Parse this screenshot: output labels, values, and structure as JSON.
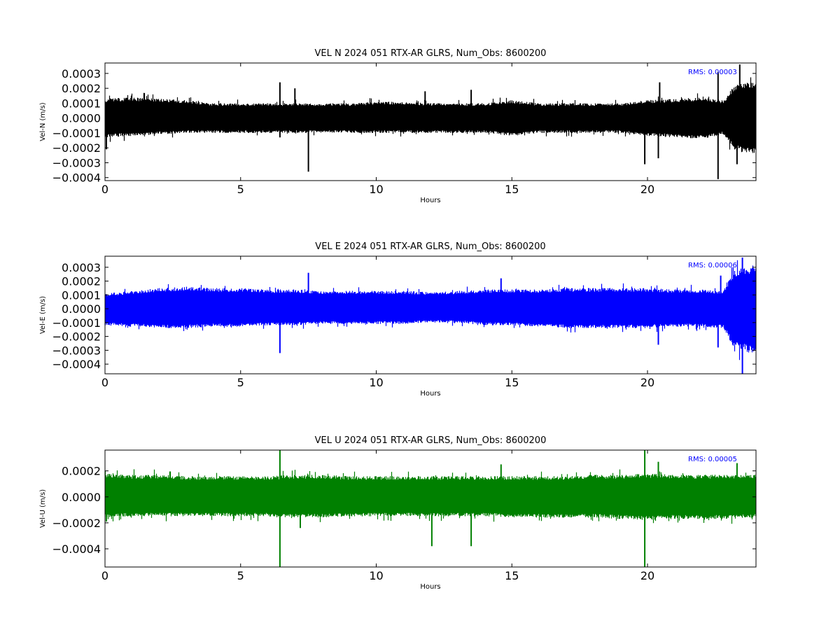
{
  "chart_data": [
    {
      "type": "line",
      "title": "VEL N 2024 051 RTX-AR  GLRS, Num_Obs: 8600200",
      "xlabel": "Hours",
      "ylabel": "Vel-N (m/s)",
      "xlim": [
        0,
        24
      ],
      "ylim": [
        -0.00042,
        0.00037
      ],
      "x_ticks": [
        0,
        5,
        10,
        15,
        20
      ],
      "x_tick_labels": [
        "0",
        "5",
        "10",
        "15",
        "20"
      ],
      "y_ticks": [
        0.0003,
        0.0002,
        0.0001,
        0.0,
        -0.0001,
        -0.0002,
        -0.0003,
        -0.0004
      ],
      "y_tick_labels": [
        "0.0003",
        "0.0002",
        "0.0001",
        "0.0000",
        "−0.0001",
        "−0.0002",
        "−0.0003",
        "−0.0004"
      ],
      "color": "#000000",
      "rms_text": "RMS:  0.00003",
      "rms_color": "#0000ff",
      "grid": false,
      "series": [
        {
          "envelope": {
            "x": [
              0,
              1,
              2,
              3,
              4,
              5,
              6,
              7,
              8,
              9,
              10,
              11,
              12,
              13,
              14,
              15,
              16,
              17,
              18,
              19,
              20,
              21,
              22,
              22.8,
              23.2,
              24
            ],
            "upper": [
              0.00013,
              0.00014,
              0.00013,
              0.00012,
              0.0001,
              0.0001,
              0.0001,
              0.0001,
              0.0001,
              0.0001,
              0.00011,
              0.00011,
              0.0001,
              0.0001,
              0.0001,
              0.00012,
              0.0001,
              0.0001,
              0.0001,
              0.0001,
              0.00012,
              0.00013,
              0.00014,
              0.00012,
              0.00022,
              0.00025
            ],
            "lower": [
              -0.00013,
              -0.00012,
              -0.00011,
              -0.0001,
              -0.0001,
              -0.0001,
              -0.0001,
              -0.0001,
              -0.0001,
              -0.0001,
              -0.0001,
              -0.0001,
              -0.0001,
              -0.0001,
              -0.0001,
              -0.00012,
              -0.0001,
              -0.0001,
              -0.0001,
              -0.0001,
              -0.00012,
              -0.00013,
              -0.00014,
              -0.00011,
              -0.00022,
              -0.00025
            ]
          },
          "spikes": [
            {
              "x": 0.05,
              "y": -0.00021
            },
            {
              "x": 6.45,
              "y": 0.00024
            },
            {
              "x": 6.45,
              "y": -0.00013
            },
            {
              "x": 7.0,
              "y": 0.0002
            },
            {
              "x": 7.5,
              "y": -0.00036
            },
            {
              "x": 11.8,
              "y": 0.00018
            },
            {
              "x": 13.5,
              "y": 0.00019
            },
            {
              "x": 19.9,
              "y": -0.00031
            },
            {
              "x": 20.4,
              "y": -0.00027
            },
            {
              "x": 20.45,
              "y": 0.00024
            },
            {
              "x": 22.6,
              "y": -0.00041
            },
            {
              "x": 22.6,
              "y": 0.00031
            },
            {
              "x": 23.3,
              "y": -0.00031
            },
            {
              "x": 23.4,
              "y": 0.00036
            }
          ]
        }
      ]
    },
    {
      "type": "line",
      "title": "VEL E 2024 051 RTX-AR  GLRS, Num_Obs: 8600200",
      "xlabel": "Hours",
      "ylabel": "Vel-E (m/s)",
      "xlim": [
        0,
        24
      ],
      "ylim": [
        -0.00047,
        0.00038
      ],
      "x_ticks": [
        0,
        5,
        10,
        15,
        20
      ],
      "x_tick_labels": [
        "0",
        "5",
        "10",
        "15",
        "20"
      ],
      "y_ticks": [
        0.0003,
        0.0002,
        0.0001,
        0.0,
        -0.0001,
        -0.0002,
        -0.0003,
        -0.0004
      ],
      "y_tick_labels": [
        "0.0003",
        "0.0002",
        "0.0001",
        "0.0000",
        "−0.0001",
        "−0.0002",
        "−0.0003",
        "−0.0004"
      ],
      "color": "#0000ff",
      "rms_text": "RMS:  0.00006",
      "rms_color": "#0000ff",
      "grid": false,
      "series": [
        {
          "envelope": {
            "x": [
              0,
              1,
              2,
              3,
              4,
              5,
              6,
              7,
              8,
              9,
              10,
              11,
              12,
              13,
              14,
              15,
              16,
              17,
              18,
              19,
              20,
              21,
              22,
              22.8,
              23.2,
              24
            ],
            "upper": [
              0.00011,
              0.00013,
              0.00015,
              0.00016,
              0.00015,
              0.00015,
              0.00014,
              0.00014,
              0.00013,
              0.00013,
              0.00013,
              0.00013,
              0.00012,
              0.00013,
              0.00014,
              0.00014,
              0.00014,
              0.00015,
              0.00015,
              0.00015,
              0.00015,
              0.00014,
              0.00014,
              0.00013,
              0.00028,
              0.00032
            ],
            "lower": [
              -0.00012,
              -0.00013,
              -0.00014,
              -0.00014,
              -0.00013,
              -0.00013,
              -0.00012,
              -0.00012,
              -0.00011,
              -0.00011,
              -0.00011,
              -0.00011,
              -0.0001,
              -0.0001,
              -0.00012,
              -0.00012,
              -0.00013,
              -0.00014,
              -0.00014,
              -0.00014,
              -0.00014,
              -0.00013,
              -0.00013,
              -0.00014,
              -0.00029,
              -0.00033
            ]
          },
          "spikes": [
            {
              "x": 6.45,
              "y": -0.00032
            },
            {
              "x": 7.5,
              "y": 0.00026
            },
            {
              "x": 14.6,
              "y": 0.00022
            },
            {
              "x": 20.4,
              "y": -0.00026
            },
            {
              "x": 22.6,
              "y": -0.00028
            },
            {
              "x": 22.7,
              "y": 0.00024
            },
            {
              "x": 23.5,
              "y": -0.00047
            },
            {
              "x": 23.5,
              "y": 0.00037
            }
          ]
        }
      ]
    },
    {
      "type": "line",
      "title": "VEL U 2024 051 RTX-AR  GLRS, Num_Obs: 8600200",
      "xlabel": "Hours",
      "ylabel": "Vel-U (m/s)",
      "xlim": [
        0,
        24
      ],
      "ylim": [
        -0.00054,
        0.00036
      ],
      "x_ticks": [
        0,
        5,
        10,
        15,
        20
      ],
      "x_tick_labels": [
        "0",
        "5",
        "10",
        "15",
        "20"
      ],
      "y_ticks": [
        0.0002,
        0.0,
        -0.0002,
        -0.0004
      ],
      "y_tick_labels": [
        "0.0002",
        "0.0000",
        "−0.0002",
        "−0.0004"
      ],
      "color": "#008000",
      "rms_text": "RMS:  0.00005",
      "rms_color": "#0000ff",
      "grid": false,
      "series": [
        {
          "envelope": {
            "x": [
              0,
              1,
              2,
              3,
              4,
              5,
              6,
              7,
              8,
              9,
              10,
              11,
              12,
              13,
              14,
              15,
              16,
              17,
              18,
              19,
              20,
              21,
              22,
              23,
              24
            ],
            "upper": [
              0.00018,
              0.00017,
              0.00017,
              0.00016,
              0.00016,
              0.00016,
              0.00016,
              0.00017,
              0.00017,
              0.00016,
              0.00016,
              0.00016,
              0.00016,
              0.00016,
              0.00016,
              0.00016,
              0.00016,
              0.00016,
              0.00017,
              0.00017,
              0.00018,
              0.00017,
              0.00017,
              0.00017,
              0.00017
            ],
            "lower": [
              -0.00016,
              -0.00015,
              -0.00015,
              -0.00015,
              -0.00015,
              -0.00015,
              -0.00015,
              -0.00016,
              -0.00016,
              -0.00015,
              -0.00015,
              -0.00015,
              -0.00015,
              -0.00015,
              -0.00015,
              -0.00016,
              -0.00016,
              -0.00016,
              -0.00016,
              -0.00017,
              -0.00018,
              -0.00017,
              -0.00017,
              -0.00017,
              -0.00016
            ]
          },
          "spikes": [
            {
              "x": 0.05,
              "y": -0.00019
            },
            {
              "x": 6.45,
              "y": 0.00036
            },
            {
              "x": 6.45,
              "y": -0.00054
            },
            {
              "x": 7.2,
              "y": -0.00024
            },
            {
              "x": 12.05,
              "y": -0.00038
            },
            {
              "x": 13.5,
              "y": -0.00038
            },
            {
              "x": 14.6,
              "y": 0.00025
            },
            {
              "x": 19.9,
              "y": 0.00036
            },
            {
              "x": 19.9,
              "y": -0.00054
            },
            {
              "x": 20.4,
              "y": 0.00027
            },
            {
              "x": 23.3,
              "y": 0.00026
            }
          ]
        }
      ]
    }
  ]
}
